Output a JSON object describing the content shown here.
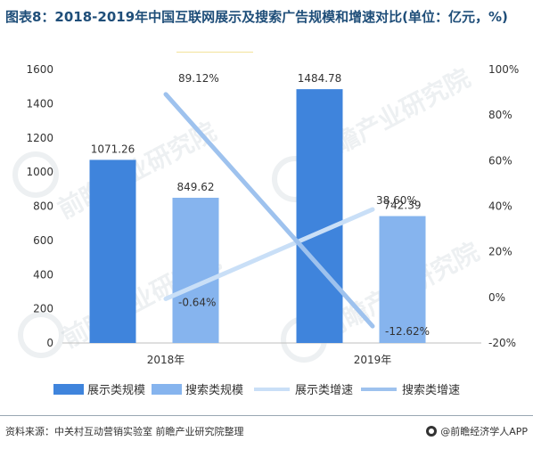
{
  "title": "图表8：2018-2019年中国互联网展示及搜索广告规模和增速对比(单位：亿元，%)",
  "watermark": "前瞻产业研究院",
  "footer": {
    "source": "资料来源：中关村互动营销实验室  前瞻产业研究院整理",
    "brand": "@前瞻经济学人APP"
  },
  "colors": {
    "display_bar": "#3f84dc",
    "search_bar": "#86b4ee",
    "display_line": "#c9dff7",
    "search_line": "#9ec2ee"
  },
  "chart_data": {
    "type": "bar",
    "categories": [
      "2018年",
      "2019年"
    ],
    "series": [
      {
        "name": "展示类规模",
        "kind": "bar",
        "axis": "left",
        "values": [
          1071.26,
          1484.78
        ],
        "labels": [
          "1071.26",
          "1484.78"
        ]
      },
      {
        "name": "搜索类规模",
        "kind": "bar",
        "axis": "left",
        "values": [
          849.62,
          742.39
        ],
        "labels": [
          "849.62",
          "742.39"
        ]
      },
      {
        "name": "展示类增速",
        "kind": "line",
        "axis": "right",
        "values": [
          -0.64,
          38.6
        ],
        "labels": [
          "-0.64%",
          "38.60%"
        ]
      },
      {
        "name": "搜索类增速",
        "kind": "line",
        "axis": "right",
        "values": [
          89.12,
          -12.62
        ],
        "labels": [
          "89.12%",
          "-12.62%"
        ]
      }
    ],
    "y_left": {
      "min": 0,
      "max": 1600,
      "ticks": [
        0,
        200,
        400,
        600,
        800,
        1000,
        1200,
        1400,
        1600
      ]
    },
    "y_right": {
      "min": -20,
      "max": 100,
      "ticks": [
        "-20%",
        "0%",
        "20%",
        "40%",
        "60%",
        "80%",
        "100%"
      ],
      "tick_values": [
        -20,
        0,
        20,
        40,
        60,
        80,
        100
      ]
    },
    "legend": "bottom",
    "grid": false
  }
}
